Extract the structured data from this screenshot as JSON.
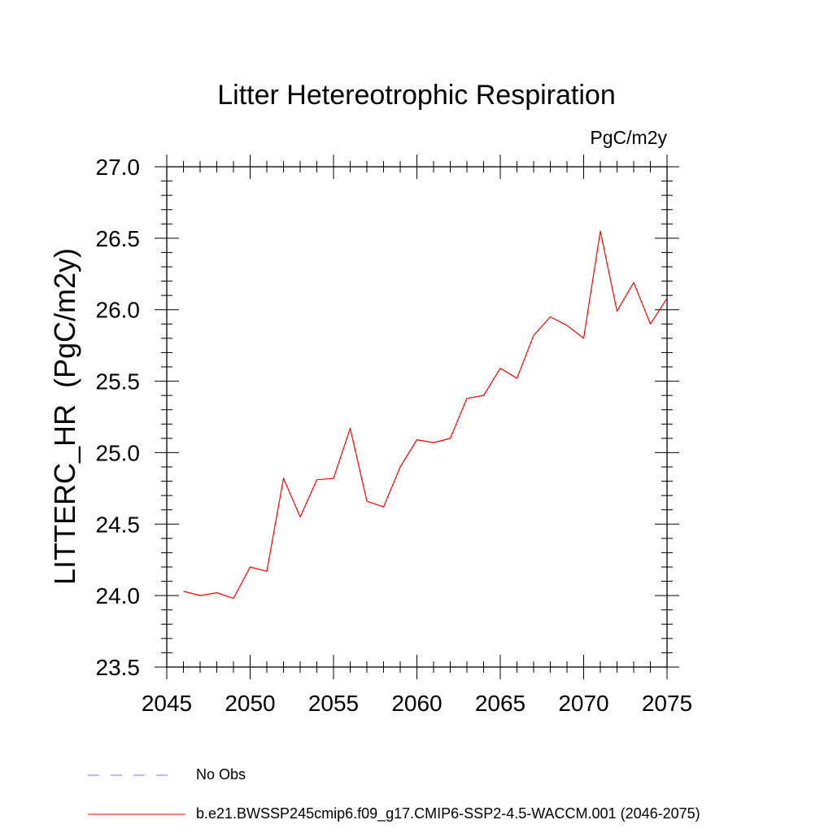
{
  "chart_data": {
    "type": "line",
    "title": "Litter Hetereotrophic Respiration",
    "units_label": "PgC/m2y",
    "ylabel": "LITTERC_HR  (PgC/m2y)",
    "xlabel": "",
    "xlim": [
      2045,
      2075
    ],
    "ylim": [
      23.5,
      27.0
    ],
    "x_ticks": [
      "2045",
      "2050",
      "2055",
      "2060",
      "2065",
      "2070",
      "2075"
    ],
    "y_ticks": [
      "23.5",
      "24.0",
      "24.5",
      "25.0",
      "25.5",
      "26.0",
      "26.5",
      "27.0"
    ],
    "series": [
      {
        "name": "b.e21.BWSSP245cmip6.f09_g17.CMIP6-SSP2-4.5-WACCM.001 (2046-2075)",
        "color": "#ff0000",
        "x": [
          2046,
          2047,
          2048,
          2049,
          2050,
          2051,
          2052,
          2053,
          2054,
          2055,
          2056,
          2057,
          2058,
          2059,
          2060,
          2061,
          2062,
          2063,
          2064,
          2065,
          2066,
          2067,
          2068,
          2069,
          2070,
          2071,
          2072,
          2073,
          2074,
          2075
        ],
        "values": [
          24.03,
          24.0,
          24.02,
          23.98,
          24.2,
          24.17,
          24.82,
          24.55,
          24.81,
          24.82,
          25.17,
          24.66,
          24.62,
          24.9,
          25.09,
          25.07,
          25.1,
          25.38,
          25.4,
          25.59,
          25.52,
          25.82,
          25.95,
          25.89,
          25.8,
          26.55,
          25.99,
          26.19,
          25.9,
          26.08
        ]
      }
    ],
    "legend": [
      {
        "label": "No Obs",
        "style": "dashed",
        "color": "#7777cc"
      },
      {
        "label": "b.e21.BWSSP245cmip6.f09_g17.CMIP6-SSP2-4.5-WACCM.001 (2046-2075)",
        "style": "solid",
        "color": "#ff0000"
      }
    ]
  }
}
